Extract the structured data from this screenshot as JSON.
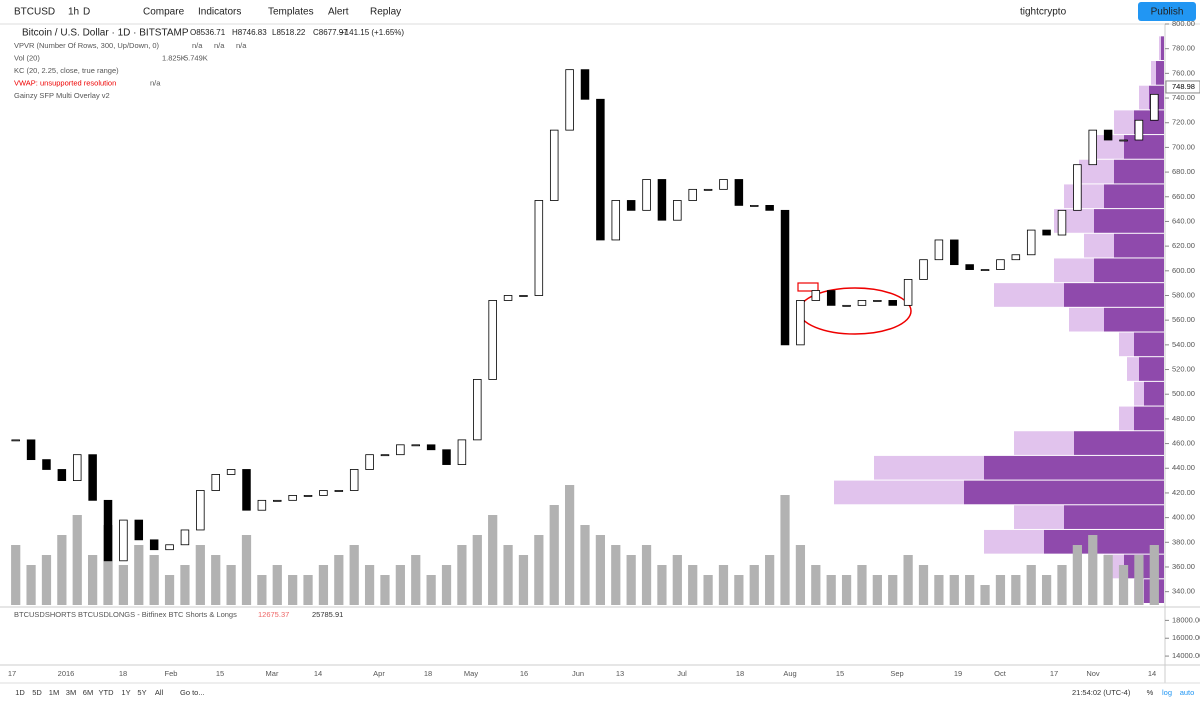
{
  "toolbar": {
    "symbol": "BTCUSD",
    "interval": "1h",
    "interval_active": "D",
    "buttons": [
      "Compare",
      "Indicators",
      "Templates",
      "Alert",
      "Replay"
    ],
    "user": "tightcrypto",
    "publish": "Publish"
  },
  "legend": {
    "title": "Bitcoin / U.S. Dollar · 1D · BITSTAMP",
    "ohlc": [
      "O8536.71",
      "H8746.83",
      "L8518.22",
      "C8677.97",
      "+141.15 (+1.65%)"
    ],
    "indicators": [
      {
        "name": "VPVR (Number Of Rows, 300, Up/Down, 0)",
        "values": [
          "n/a",
          "n/a",
          "n/a"
        ]
      },
      {
        "name": "Vol (20)",
        "values": [
          "1.825K",
          "5.749K"
        ]
      },
      {
        "name": "KC (20, 2.25, close, true range)"
      },
      {
        "name": "VWAP: unsupported resolution",
        "values": [
          "n/a"
        ]
      },
      {
        "name": "Gainzy SFP Multi Overlay v2"
      }
    ]
  },
  "chart": {
    "type": "candlestick",
    "up_color": "#ffffff",
    "down_color": "#000000",
    "volume_color": "#b2b2b2",
    "closes": [
      463,
      447,
      439,
      430,
      451,
      414,
      365,
      398,
      382,
      374,
      378,
      390,
      422,
      435,
      439,
      406,
      414,
      414,
      418,
      418,
      422,
      422,
      439,
      451,
      451,
      459,
      459,
      455,
      443,
      463,
      512,
      576,
      580,
      580,
      657,
      714,
      763,
      739,
      625,
      657,
      649,
      674,
      641,
      657,
      666,
      666,
      674,
      653,
      653,
      649,
      540,
      576,
      584,
      572,
      572,
      576,
      576,
      572,
      593,
      609,
      625,
      605,
      601,
      601,
      609,
      613,
      633,
      629,
      649,
      686,
      714,
      706,
      706,
      722,
      743
    ],
    "volumes": [
      6,
      4,
      5,
      7,
      9,
      5,
      8,
      4,
      6,
      5,
      3,
      4,
      6,
      5,
      4,
      7,
      3,
      4,
      3,
      3,
      4,
      5,
      6,
      4,
      3,
      4,
      5,
      3,
      4,
      6,
      7,
      9,
      6,
      5,
      7,
      10,
      12,
      8,
      7,
      6,
      5,
      6,
      4,
      5,
      4,
      3,
      4,
      3,
      4,
      5,
      11,
      6,
      4,
      3,
      3,
      4,
      3,
      3,
      5,
      4,
      3,
      3,
      3,
      2,
      3,
      3,
      4,
      3,
      4,
      6,
      7,
      5,
      4,
      5,
      6
    ],
    "ylim": [
      330,
      800
    ],
    "yticks": [
      {
        "value": 800,
        "label": "800.00"
      },
      {
        "value": 780,
        "label": "780.00"
      },
      {
        "value": 760,
        "label": "760.00"
      },
      {
        "value": 740,
        "label": "740.00"
      },
      {
        "value": 720,
        "label": "720.00"
      },
      {
        "value": 700,
        "label": "700.00"
      },
      {
        "value": 680,
        "label": "680.00"
      },
      {
        "value": 660,
        "label": "660.00"
      },
      {
        "value": 640,
        "label": "640.00"
      },
      {
        "value": 620,
        "label": "620.00"
      },
      {
        "value": 600,
        "label": "600.00"
      },
      {
        "value": 580,
        "label": "580.00"
      },
      {
        "value": 560,
        "label": "560.00"
      },
      {
        "value": 540,
        "label": "540.00"
      },
      {
        "value": 520,
        "label": "520.00"
      },
      {
        "value": 500,
        "label": "500.00"
      },
      {
        "value": 480,
        "label": "480.00"
      },
      {
        "value": 460,
        "label": "460.00"
      },
      {
        "value": 440,
        "label": "440.00"
      },
      {
        "value": 420,
        "label": "420.00"
      },
      {
        "value": 400,
        "label": "400.00"
      },
      {
        "value": 380,
        "label": "380.00"
      },
      {
        "value": 360,
        "label": "360.00"
      },
      {
        "value": 340,
        "label": "340.00"
      }
    ],
    "last_price": {
      "value": 748.98,
      "label": "748.98"
    },
    "volume_profile": {
      "up_color": "#7b2a9e",
      "down_color": "#dcb8ea",
      "prices": [
        340,
        360,
        380,
        400,
        420,
        440,
        460,
        480,
        500,
        520,
        540,
        560,
        580,
        600,
        620,
        640,
        660,
        680,
        700,
        720,
        740,
        760,
        780
      ],
      "up": [
        20,
        40,
        120,
        100,
        200,
        180,
        90,
        30,
        20,
        25,
        30,
        60,
        100,
        70,
        50,
        70,
        60,
        50,
        40,
        30,
        15,
        8,
        3
      ],
      "down": [
        10,
        20,
        60,
        50,
        130,
        110,
        60,
        15,
        10,
        12,
        15,
        35,
        70,
        40,
        30,
        40,
        40,
        35,
        30,
        20,
        10,
        5,
        2
      ]
    }
  },
  "x_axis": [
    "17",
    "2016",
    "18",
    "Feb",
    "15",
    "Mar",
    "14",
    "Apr",
    "18",
    "May",
    "16",
    "Jun",
    "13",
    "Jul",
    "18",
    "Aug",
    "15",
    "Sep",
    "19",
    "Oct",
    "17",
    "Nov",
    "14"
  ],
  "lower_pane": {
    "title": "BTCUSDSHORTS BTCUSDLONGS - Bitfinex BTC Shorts & Longs",
    "values": [
      "12675.37",
      "25785.91"
    ],
    "ylim": [
      13000,
      19500
    ],
    "yticks": [
      {
        "value": 18000,
        "label": "18000.00"
      },
      {
        "value": 16000,
        "label": "16000.00"
      },
      {
        "value": 14000,
        "label": "14000.00"
      }
    ]
  },
  "bottom": {
    "ranges": [
      "1D",
      "5D",
      "1M",
      "3M",
      "6M",
      "YTD",
      "1Y",
      "5Y",
      "All"
    ],
    "goto": "Go to...",
    "time": "21:54:02 (UTC-4)",
    "options": [
      "%",
      "log",
      "auto"
    ]
  }
}
